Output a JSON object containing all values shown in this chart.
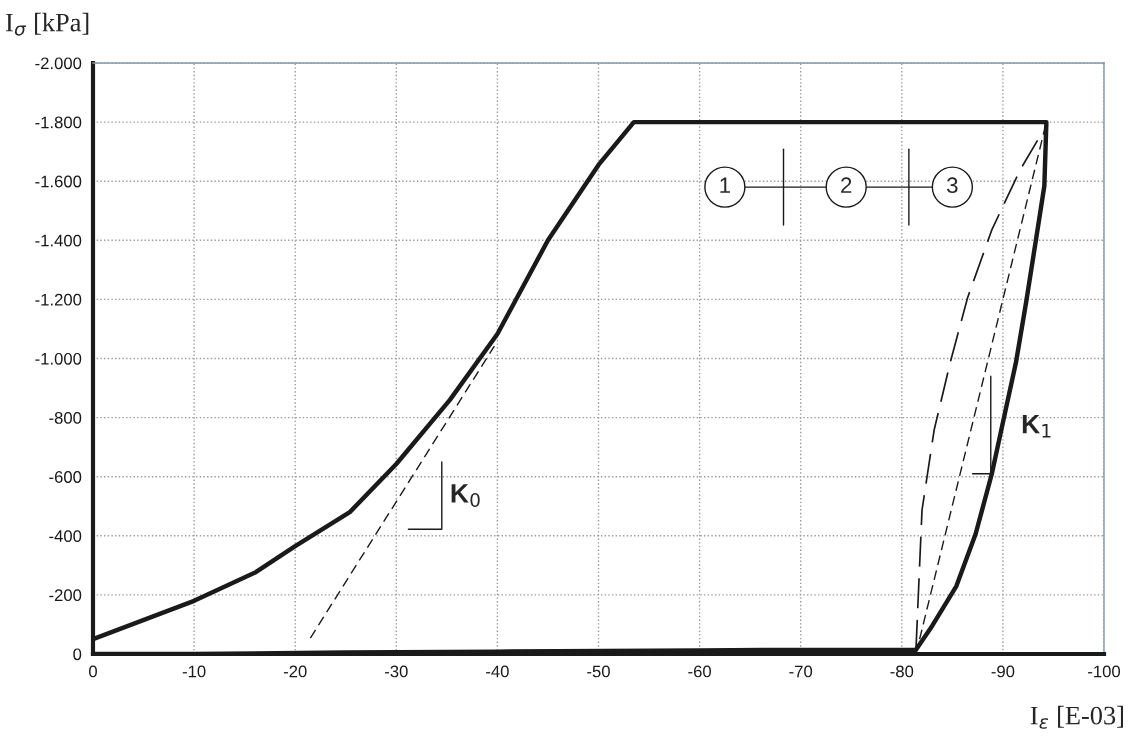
{
  "chart_data": {
    "type": "line",
    "xlabel": "I$_{ε}$ [E-03]",
    "ylabel": "I$_{σ}$ [kPa]",
    "xlim": [
      0,
      -100
    ],
    "xticks": [
      0,
      -10,
      -20,
      -30,
      -40,
      -50,
      -60,
      -70,
      -80,
      -90,
      -100
    ],
    "ylim": [
      0,
      -2000
    ],
    "yticks": [
      {
        "value": 0,
        "label": "0"
      },
      {
        "value": -200,
        "label": "-200"
      },
      {
        "value": -400,
        "label": "-400"
      },
      {
        "value": -600,
        "label": "-600"
      },
      {
        "value": -800,
        "label": "-800"
      },
      {
        "value": -1000,
        "label": "-1.000"
      },
      {
        "value": -1200,
        "label": "-1.200"
      },
      {
        "value": -1400,
        "label": "-1.400"
      },
      {
        "value": -1600,
        "label": "-1.600"
      },
      {
        "value": -1800,
        "label": "-1.800"
      },
      {
        "value": -2000,
        "label": "-2.000"
      }
    ],
    "grid": true,
    "legend": false,
    "series": [
      {
        "color": "#1a1a1a",
        "line_style": "solid",
        "x": [
          0,
          -10,
          -16.1,
          -20,
          -25.4,
          -30,
          -35.3,
          -40,
          -45,
          -50,
          -53.5,
          -60,
          -70,
          -80,
          -90,
          -94.3,
          -94.1,
          -93.3,
          -92.3,
          -91.3,
          -90.1,
          -88.9,
          -87.3,
          -85.4,
          -83,
          -81.4,
          -70,
          -60,
          -40,
          -25,
          -10,
          0
        ],
        "values": [
          -50,
          -180,
          -277,
          -365,
          -480,
          -643,
          -860,
          -1083,
          -1400,
          -1655,
          -1800,
          -1800,
          -1800,
          -1800,
          -1800,
          -1800,
          -1584,
          -1408,
          -1191,
          -988,
          -799,
          -609,
          -406,
          -230,
          -95,
          -14,
          -14,
          -12,
          -8,
          -5,
          0,
          0
        ]
      },
      {
        "color": "#1a1a1a",
        "line_style": "longdash",
        "x": [
          -81.4,
          -82,
          -83.2,
          -84.8,
          -86.5,
          -88.9,
          -91.7,
          -93.8
        ],
        "values": [
          -14,
          -487,
          -758,
          -988,
          -1205,
          -1435,
          -1638,
          -1760
        ]
      },
      {
        "color": "#1a1a1a",
        "line_style": "dashed",
        "x": [
          -81.4,
          -94.3
        ],
        "values": [
          0,
          -1800
        ]
      },
      {
        "color": "#1a1a1a",
        "line_style": "dashed",
        "x": [
          -21.5,
          -39.7
        ],
        "values": [
          -54,
          -1042
        ]
      }
    ],
    "annotations": [
      "K$_{0}$",
      "K$_{1}$",
      "1",
      "2",
      "3"
    ]
  }
}
